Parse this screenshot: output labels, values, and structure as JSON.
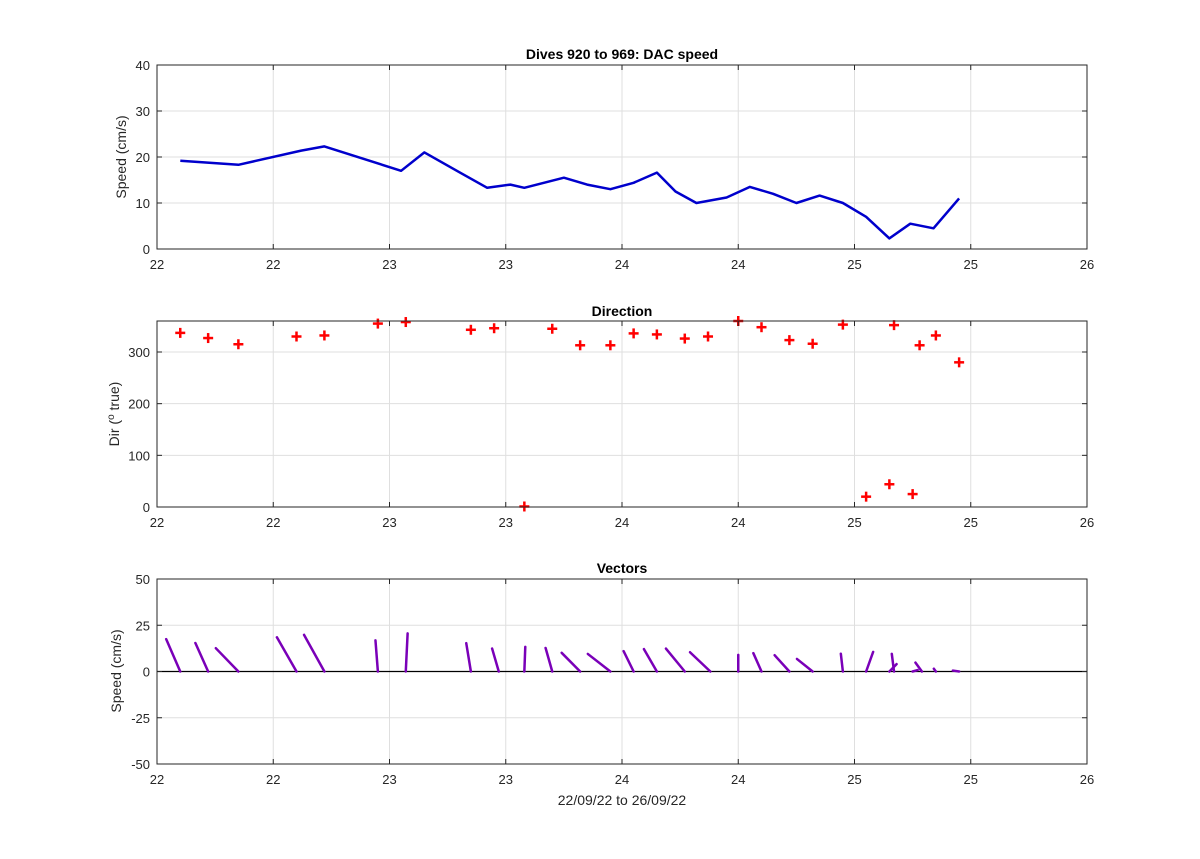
{
  "page": {
    "xlabel": "22/09/22 to 26/09/22"
  },
  "chart_data": [
    {
      "type": "line",
      "title": "Dives 920 to 969: DAC speed",
      "xlabel": "",
      "ylabel": "Speed (cm/s)",
      "xlim": [
        22.0,
        26.0
      ],
      "ylim": [
        0,
        40
      ],
      "x_ticks": [
        22.0,
        22.5,
        23.0,
        23.5,
        24.0,
        24.5,
        25.0,
        25.5,
        26.0
      ],
      "x_tick_labels": [
        "22",
        "22",
        "23",
        "23",
        "24",
        "24",
        "25",
        "25",
        "26"
      ],
      "y_ticks": [
        0,
        10,
        20,
        30,
        40
      ],
      "y_tick_labels": [
        "0",
        "10",
        "20",
        "30",
        "40"
      ],
      "grid": true,
      "color": "#0000CC",
      "series": [
        {
          "x": [
            22.1,
            22.35,
            22.62,
            22.72,
            23.05,
            23.15,
            23.3,
            23.42,
            23.52,
            23.58,
            23.75,
            23.85,
            23.95,
            24.05,
            24.15,
            24.23,
            24.32,
            24.45,
            24.55,
            24.65,
            24.75,
            24.85,
            24.95,
            25.05,
            25.15,
            25.24,
            25.34,
            25.45
          ],
          "y": [
            19.2,
            18.3,
            21.4,
            22.3,
            17.0,
            21.0,
            16.7,
            13.3,
            14.0,
            13.3,
            15.5,
            14.0,
            13.0,
            14.4,
            16.6,
            12.5,
            10.0,
            11.2,
            13.5,
            12.0,
            10.0,
            11.6,
            10.0,
            7.0,
            2.3,
            5.5,
            4.5,
            11.0
          ]
        }
      ]
    },
    {
      "type": "scatter",
      "title": "Direction",
      "xlabel": "",
      "ylabel": "Dir (",
      "ylabel_sup": "o",
      "ylabel_tail": " true)",
      "xlim": [
        22.0,
        26.0
      ],
      "ylim": [
        0,
        360
      ],
      "x_ticks": [
        22.0,
        22.5,
        23.0,
        23.5,
        24.0,
        24.5,
        25.0,
        25.5,
        26.0
      ],
      "x_tick_labels": [
        "22",
        "22",
        "23",
        "23",
        "24",
        "24",
        "25",
        "25",
        "26"
      ],
      "y_ticks": [
        0,
        100,
        200,
        300
      ],
      "y_tick_labels": [
        "0",
        "100",
        "200",
        "300"
      ],
      "grid": true,
      "marker": "+",
      "color": "#FF0000",
      "series": [
        {
          "x": [
            22.1,
            22.22,
            22.35,
            22.6,
            22.72,
            22.95,
            23.07,
            23.35,
            23.45,
            23.58,
            23.7,
            23.82,
            23.95,
            24.05,
            24.15,
            24.27,
            24.37,
            24.5,
            24.6,
            24.72,
            24.82,
            24.95,
            25.05,
            25.17,
            25.28,
            25.35,
            25.45
          ],
          "y": [
            337,
            327,
            315,
            330,
            332,
            355,
            358,
            343,
            346,
            1,
            345,
            313,
            313,
            336,
            334,
            326,
            330,
            360,
            348,
            323,
            316,
            353,
            20,
            352,
            313,
            332,
            280
          ]
        },
        {
          "x": [
            25.15,
            25.25
          ],
          "y": [
            44,
            25
          ]
        }
      ]
    },
    {
      "type": "line",
      "title": "Vectors",
      "xlabel": "22/09/22 to 26/09/22",
      "ylabel": "Speed (cm/s)",
      "xlim": [
        22.0,
        26.0
      ],
      "ylim": [
        -50,
        50
      ],
      "x_ticks": [
        22.0,
        22.5,
        23.0,
        23.5,
        24.0,
        24.5,
        25.0,
        25.5,
        26.0
      ],
      "x_tick_labels": [
        "22",
        "22",
        "23",
        "23",
        "24",
        "24",
        "25",
        "25",
        "26"
      ],
      "y_ticks": [
        -50,
        -25,
        0,
        25,
        50
      ],
      "y_tick_labels": [
        "-50",
        "-25",
        "0",
        "25",
        "50"
      ],
      "grid": true,
      "color": "#7A00B8",
      "series": [
        {
          "x": [
            22.1,
            22.22,
            22.35,
            22.6,
            22.72,
            22.95,
            23.07,
            23.35,
            23.47,
            23.58,
            23.7,
            23.82,
            23.95,
            24.05,
            24.15,
            24.27,
            24.38,
            24.5,
            24.6,
            24.72,
            24.82,
            24.95,
            25.05,
            25.17,
            25.29,
            25.35,
            25.45
          ],
          "u": [
            -7.6,
            -6.9,
            -12.2,
            -10.6,
            -11.0,
            -1.3,
            1.0,
            -2.5,
            -3.6,
            0.5,
            -3.6,
            -10.0,
            -12.2,
            -5.4,
            -7.0,
            -10.2,
            -11.0,
            0.0,
            -4.4,
            -8.0,
            -8.5,
            -1.1,
            3.8,
            -1.2,
            -3.5,
            -1.1,
            -3.4
          ],
          "v": [
            17.5,
            15.4,
            12.6,
            18.5,
            19.8,
            16.8,
            20.6,
            15.3,
            12.4,
            13.3,
            12.7,
            10.1,
            9.5,
            11.0,
            12.1,
            12.4,
            10.4,
            9.0,
            9.9,
            8.8,
            6.8,
            9.6,
            10.6,
            9.5,
            4.8,
            1.5,
            0.5
          ]
        },
        {
          "x": [
            25.15,
            25.25
          ],
          "u": [
            3.9,
            2.7
          ],
          "v": [
            4.0,
            0.8
          ]
        }
      ]
    }
  ]
}
